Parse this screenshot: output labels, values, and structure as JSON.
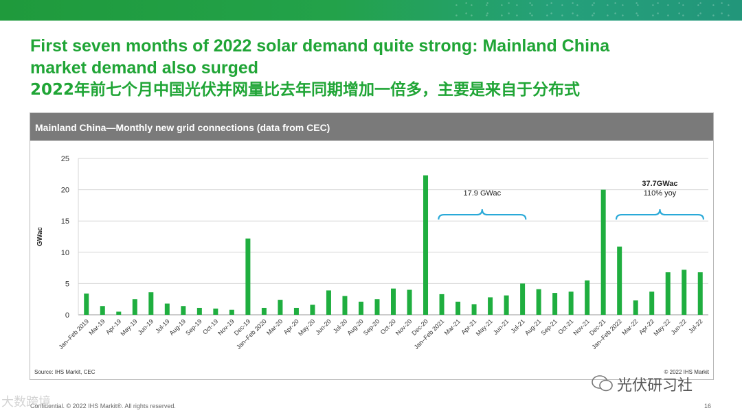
{
  "header": {
    "title_line1": "First seven months of 2022 solar demand quite strong: Mainland China",
    "title_line2": "market demand also surged",
    "title_line3": "2022年前七个月中国光伏并网量比去年同期增加一倍多，主要是来自于分布式"
  },
  "panel": {
    "title": "Mainland China—Monthly new grid connections (data from CEC)",
    "source": "Source: IHS Markit, CEC",
    "copyright": "© 2022 IHS Markit"
  },
  "footer": {
    "text": "Confidential. © 2022 IHS Markit®. All rights reserved.",
    "page": "16"
  },
  "watermark": {
    "text": "光伏研习社",
    "left_text": "大数跨境"
  },
  "colors": {
    "accent": "#20a536",
    "bar": "#1fae3f",
    "brace": "#29a9d8"
  },
  "chart_data": {
    "type": "bar",
    "title": "Mainland China—Monthly new grid connections (data from CEC)",
    "xlabel": "",
    "ylabel": "GWac",
    "ylim": [
      0,
      25
    ],
    "yticks": [
      0,
      5,
      10,
      15,
      20,
      25
    ],
    "grid": true,
    "categories": [
      "Jan–Feb 2019",
      "Mar-19",
      "Apr-19",
      "May-19",
      "Jun-19",
      "Jul-19",
      "Aug-19",
      "Sep-19",
      "Oct-19",
      "Nov-19",
      "Dec-19",
      "Jan–Feb 2020",
      "Mar-20",
      "Apr-20",
      "May-20",
      "Jun-20",
      "Jul-20",
      "Aug-20",
      "Sep-20",
      "Oct-20",
      "Nov-20",
      "Dec-20",
      "Jan–Feb 2021",
      "Mar-21",
      "Apr-21",
      "May-21",
      "Jun-21",
      "Jul-21",
      "Aug-21",
      "Sep-21",
      "Oct-21",
      "Nov-21",
      "Dec-21",
      "Jan–Feb 2022",
      "Mar-22",
      "Apr-22",
      "May-22",
      "Jun-22",
      "Jul-22"
    ],
    "values": [
      3.4,
      1.4,
      0.5,
      2.5,
      3.6,
      1.8,
      1.4,
      1.1,
      1.0,
      0.8,
      12.2,
      1.1,
      2.4,
      1.1,
      1.6,
      3.9,
      3.0,
      2.1,
      2.5,
      4.2,
      4.0,
      22.3,
      3.3,
      2.1,
      1.7,
      2.8,
      3.1,
      5.0,
      4.1,
      3.5,
      3.7,
      5.5,
      20.0,
      10.9,
      2.3,
      3.7,
      6.8,
      7.2,
      6.8
    ],
    "annotations": [
      {
        "label": "17.9 GWac",
        "sublabel": "",
        "from": "Jan–Feb 2021",
        "to": "Jul-21",
        "y": 16,
        "bold": false
      },
      {
        "label": "37.7GWac",
        "sublabel": "110% yoy",
        "from": "Jan–Feb 2022",
        "to": "Jul-22",
        "y": 16,
        "bold": true
      }
    ]
  }
}
